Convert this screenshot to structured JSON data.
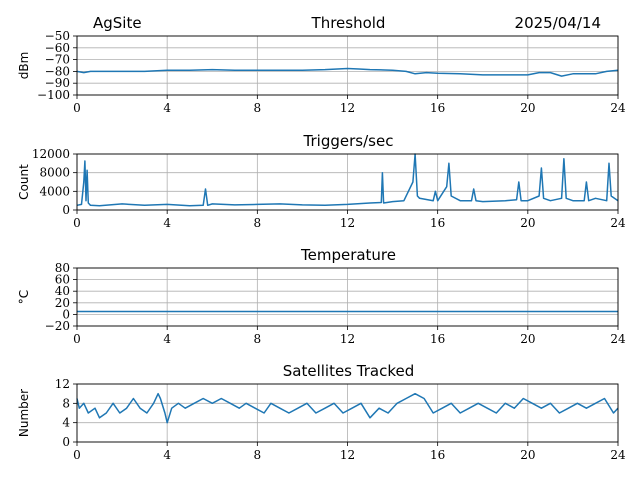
{
  "header": {
    "site": "AgSite",
    "date": "2025/04/14"
  },
  "series_color": "#1f77b4",
  "chart_data": [
    {
      "type": "line",
      "title": "Threshold",
      "ylabel": "dBm",
      "xlabel": "",
      "xlim": [
        0,
        24
      ],
      "xticks": [
        0,
        4,
        8,
        12,
        16,
        20,
        24
      ],
      "ylim": [
        -100,
        -50
      ],
      "yticks": [
        -100,
        -90,
        -80,
        -70,
        -60,
        -50
      ],
      "ytick_labels": [
        "−100",
        "−90",
        "−80",
        "−70",
        "−60",
        "−50"
      ],
      "grid": true,
      "x": [
        0,
        0.3,
        0.6,
        1,
        2,
        3,
        4,
        5,
        6,
        7,
        8,
        9,
        10,
        11,
        12,
        12.5,
        13,
        14,
        14.6,
        15,
        15.5,
        16,
        17,
        18,
        19,
        20,
        20.5,
        21,
        21.5,
        22,
        23,
        23.5,
        24
      ],
      "y": [
        -80,
        -81,
        -80,
        -80,
        -80,
        -80,
        -79,
        -79,
        -78.5,
        -79,
        -79,
        -79,
        -79,
        -78.5,
        -77.5,
        -78,
        -78.5,
        -79,
        -80,
        -82,
        -81,
        -81.5,
        -82,
        -83,
        -83,
        -83,
        -81,
        -81,
        -84,
        -82,
        -82,
        -80,
        -79
      ]
    },
    {
      "type": "line",
      "title": "Triggers/sec",
      "ylabel": "Count",
      "xlabel": "",
      "xlim": [
        0,
        24
      ],
      "xticks": [
        0,
        4,
        8,
        12,
        16,
        20,
        24
      ],
      "ylim": [
        0,
        12000
      ],
      "yticks": [
        0,
        4000,
        8000,
        12000
      ],
      "ytick_labels": [
        "0",
        "4000",
        "8000",
        "12000"
      ],
      "grid": true,
      "x": [
        0,
        0.2,
        0.3,
        0.35,
        0.4,
        0.45,
        0.5,
        0.6,
        1,
        2,
        3,
        4,
        5,
        5.6,
        5.7,
        5.8,
        6,
        7,
        8,
        9,
        10,
        11,
        12,
        13,
        13.5,
        13.55,
        13.6,
        14,
        14.5,
        14.9,
        15,
        15.1,
        15.2,
        15.8,
        15.9,
        16,
        16.4,
        16.5,
        16.6,
        17,
        17.5,
        17.6,
        17.7,
        18,
        19,
        19.5,
        19.6,
        19.7,
        20,
        20.5,
        20.6,
        20.7,
        21,
        21.5,
        21.6,
        21.7,
        22,
        22.5,
        22.6,
        22.7,
        23,
        23.5,
        23.6,
        23.7,
        24
      ],
      "y": [
        1000,
        1200,
        6000,
        10500,
        2000,
        8500,
        1500,
        1000,
        900,
        1300,
        1000,
        1200,
        900,
        1000,
        4500,
        1000,
        1300,
        1100,
        1200,
        1300,
        1100,
        1000,
        1200,
        1500,
        1600,
        8000,
        1500,
        1800,
        2000,
        6000,
        12000,
        3000,
        2500,
        2000,
        4000,
        2000,
        5000,
        10000,
        3000,
        2000,
        2000,
        4500,
        2000,
        1800,
        2000,
        2200,
        6000,
        2000,
        2000,
        3000,
        9000,
        2500,
        2000,
        2500,
        11000,
        2500,
        2000,
        2000,
        6000,
        2000,
        2500,
        2000,
        10000,
        3000,
        2000
      ]
    },
    {
      "type": "line",
      "title": "Temperature",
      "ylabel": "°C",
      "xlabel": "",
      "xlim": [
        0,
        24
      ],
      "xticks": [
        0,
        4,
        8,
        12,
        16,
        20,
        24
      ],
      "ylim": [
        -20,
        80
      ],
      "yticks": [
        -20,
        0,
        20,
        40,
        60,
        80
      ],
      "ytick_labels": [
        "−20",
        "0",
        "20",
        "40",
        "60",
        "80"
      ],
      "grid": true,
      "x": [
        0,
        24
      ],
      "y": [
        5,
        5
      ]
    },
    {
      "type": "line",
      "title": "Satellites Tracked",
      "ylabel": "Number",
      "xlabel": "",
      "xlim": [
        0,
        24
      ],
      "xticks": [
        0,
        4,
        8,
        12,
        16,
        20,
        24
      ],
      "ylim": [
        0,
        12
      ],
      "yticks": [
        0,
        4,
        8,
        12
      ],
      "ytick_labels": [
        "0",
        "4",
        "8",
        "12"
      ],
      "grid": true,
      "x": [
        0,
        0.1,
        0.3,
        0.5,
        0.8,
        1,
        1.3,
        1.6,
        1.9,
        2.2,
        2.5,
        2.8,
        3.1,
        3.4,
        3.6,
        3.7,
        3.9,
        4,
        4.2,
        4.5,
        4.8,
        5.2,
        5.6,
        6,
        6.4,
        6.8,
        7.2,
        7.5,
        7.9,
        8.3,
        8.6,
        9,
        9.4,
        9.8,
        10.2,
        10.6,
        11,
        11.4,
        11.8,
        12.2,
        12.6,
        13,
        13.4,
        13.8,
        14.2,
        14.6,
        15,
        15.4,
        15.8,
        16.2,
        16.6,
        17,
        17.4,
        17.8,
        18.2,
        18.6,
        19,
        19.4,
        19.8,
        20.2,
        20.6,
        21,
        21.4,
        21.8,
        22.2,
        22.6,
        23,
        23.4,
        23.8,
        24
      ],
      "y": [
        9,
        7,
        8,
        6,
        7,
        5,
        6,
        8,
        6,
        7,
        9,
        7,
        6,
        8,
        10,
        9,
        6,
        4,
        7,
        8,
        7,
        8,
        9,
        8,
        9,
        8,
        7,
        8,
        7,
        6,
        8,
        7,
        6,
        7,
        8,
        6,
        7,
        8,
        6,
        7,
        8,
        5,
        7,
        6,
        8,
        9,
        10,
        9,
        6,
        7,
        8,
        6,
        7,
        8,
        7,
        6,
        8,
        7,
        9,
        8,
        7,
        8,
        6,
        7,
        8,
        7,
        8,
        9,
        6,
        7
      ]
    }
  ]
}
